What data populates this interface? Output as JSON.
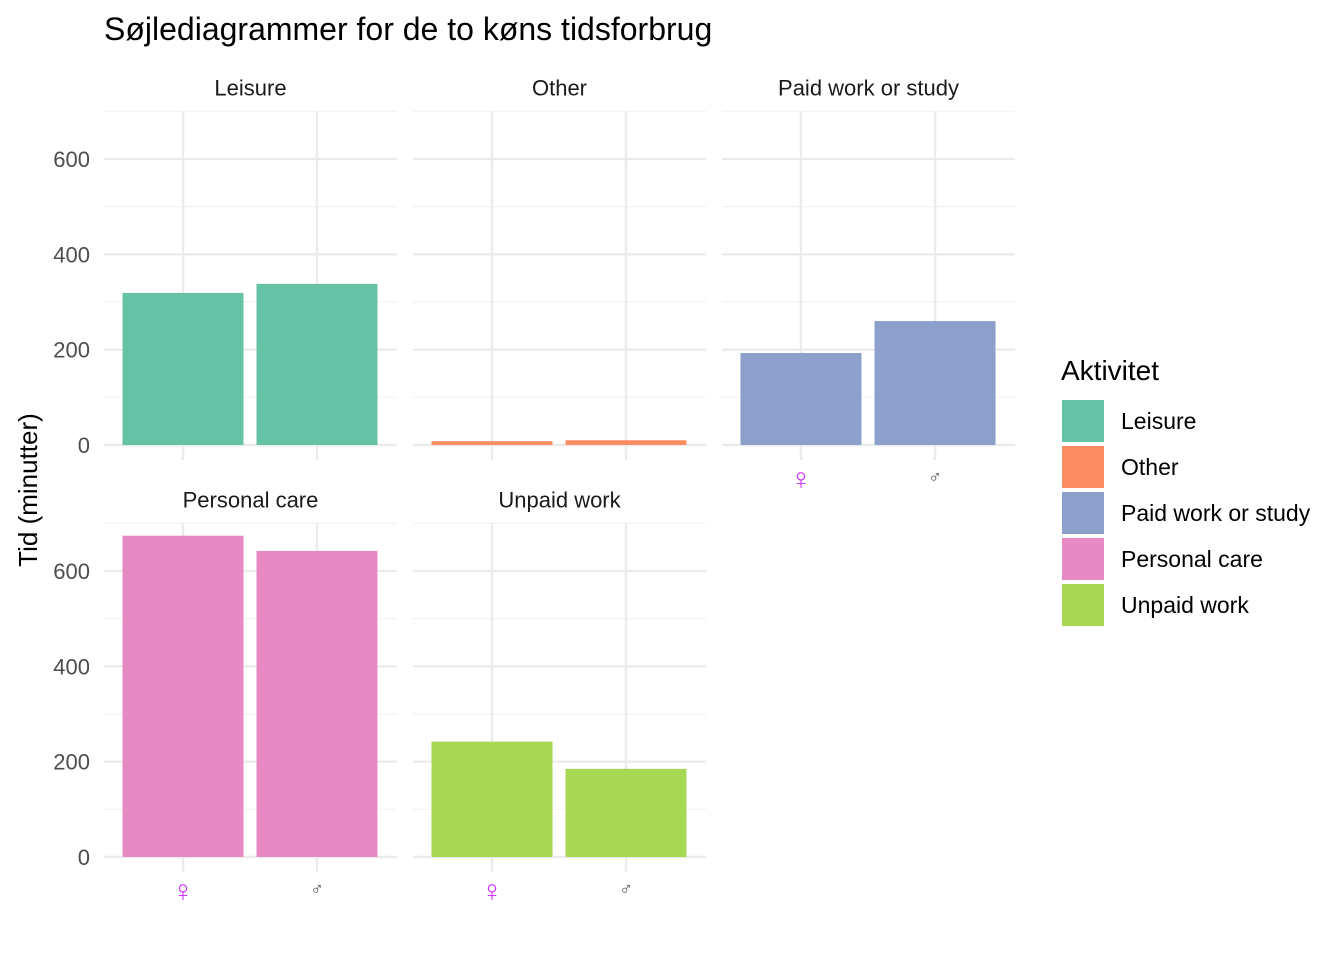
{
  "chart_data": {
    "type": "bar",
    "title": "Søjlediagrammer for de to køns tidsforbrug",
    "xlabel": "",
    "ylabel": "Tid (minutter)",
    "ylim": [
      0,
      700
    ],
    "yticks": [
      "0",
      "200",
      "400",
      "600"
    ],
    "categories": [
      "♀",
      "♂"
    ],
    "category_colors": [
      "#CC33FF",
      "#4D4D4D"
    ],
    "facets": [
      {
        "name": "Leisure",
        "color": "#66C2A5",
        "values": [
          319,
          338
        ]
      },
      {
        "name": "Other",
        "color": "#FC8D62",
        "values": [
          8,
          10
        ]
      },
      {
        "name": "Paid work or study",
        "color": "#8DA0CB",
        "values": [
          193,
          260
        ]
      },
      {
        "name": "Personal care",
        "color": "#E78AC3",
        "values": [
          674,
          642
        ]
      },
      {
        "name": "Unpaid work",
        "color": "#A6D854",
        "values": [
          242,
          185
        ]
      }
    ],
    "grid": true,
    "legend": {
      "title": "Aktivitet",
      "placement": "right",
      "entries": [
        "Leisure",
        "Other",
        "Paid work or study",
        "Personal care",
        "Unpaid work"
      ]
    }
  }
}
